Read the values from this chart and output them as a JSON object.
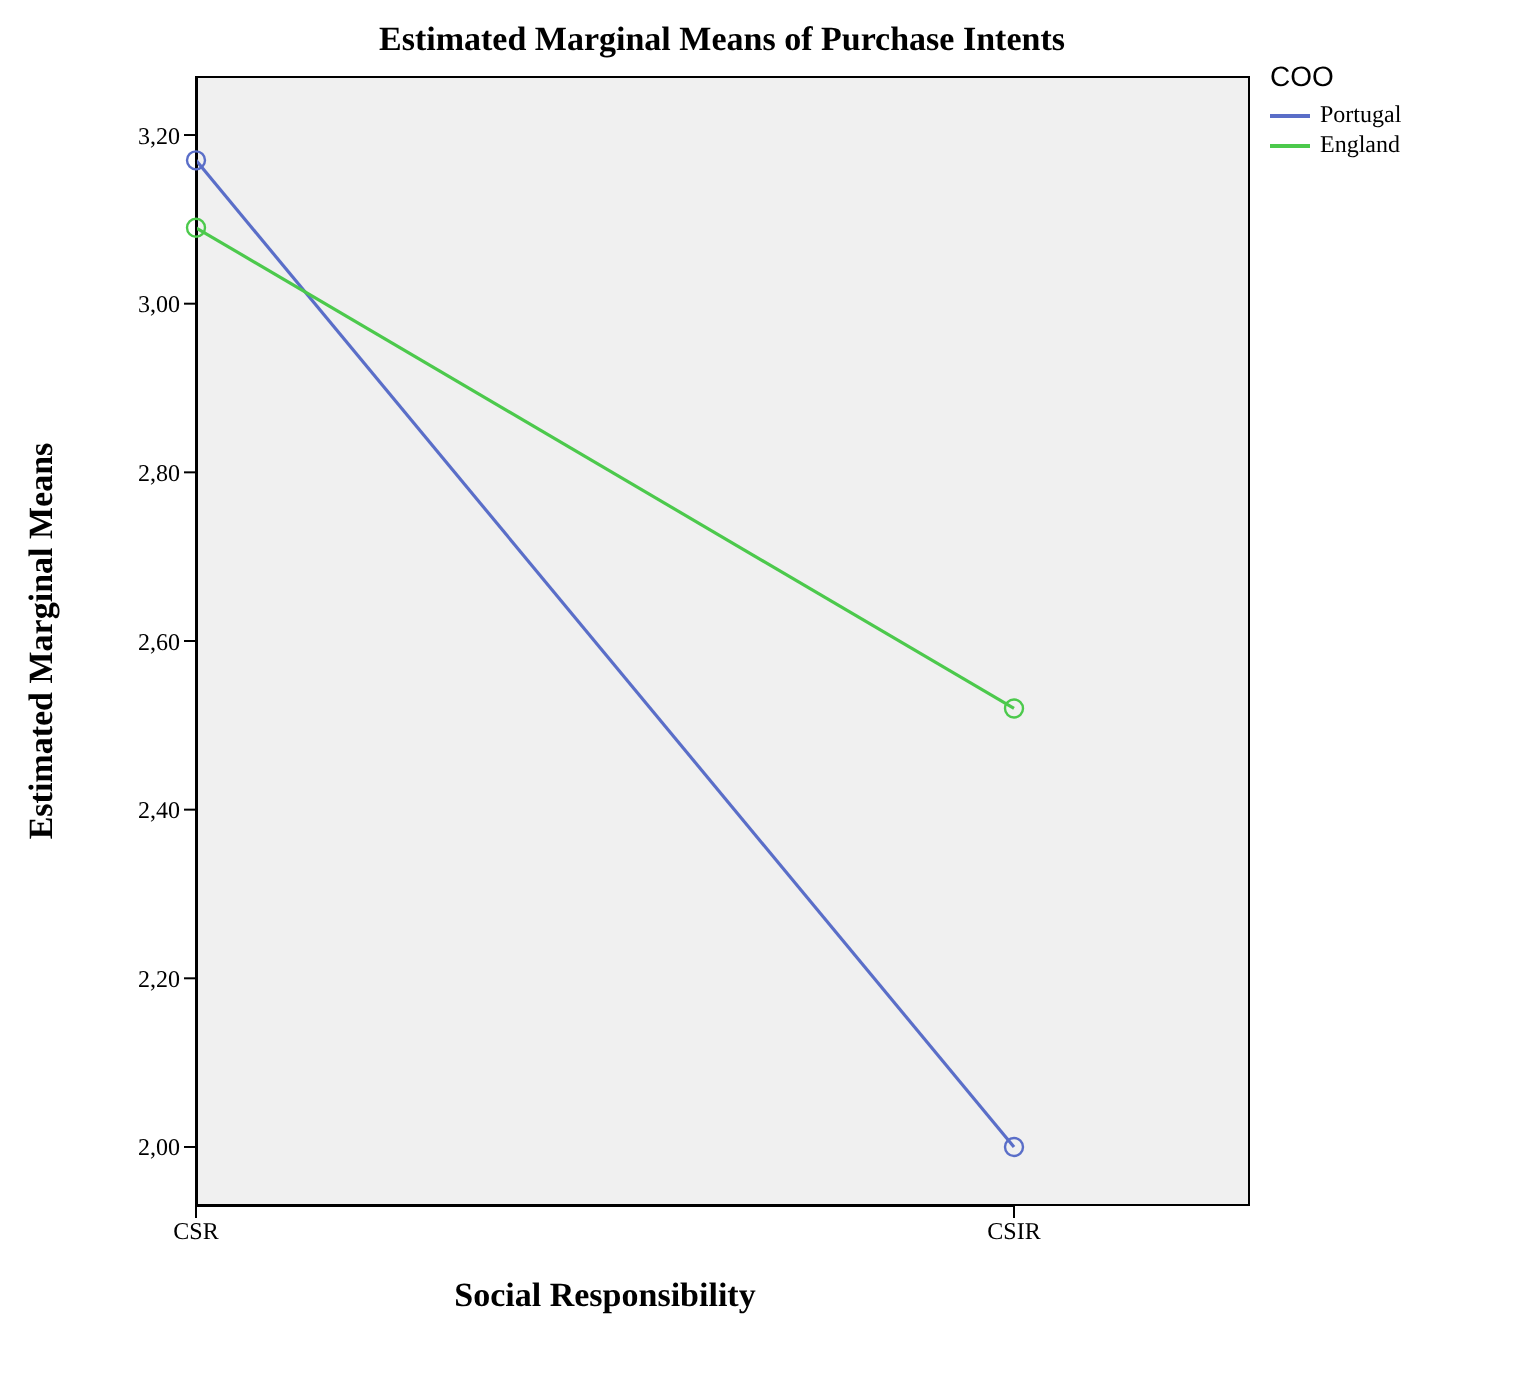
{
  "chart_data": {
    "type": "line",
    "title": "Estimated Marginal Means of Purchase Intents",
    "xlabel": "Social Responsibility",
    "ylabel": "Estimated Marginal Means",
    "legend_title": "COO",
    "categories": [
      "CSR",
      "CSIR"
    ],
    "series": [
      {
        "name": "Portugal",
        "color": "#5a6ec8",
        "values": [
          3.17,
          2.0
        ]
      },
      {
        "name": "England",
        "color": "#4cc94c",
        "values": [
          3.09,
          2.52
        ]
      }
    ],
    "ylim": [
      1.93,
      3.27
    ],
    "yticks": [
      {
        "value": 2.0,
        "label": "2,00"
      },
      {
        "value": 2.2,
        "label": "2,20"
      },
      {
        "value": 2.4,
        "label": "2,40"
      },
      {
        "value": 2.6,
        "label": "2,60"
      },
      {
        "value": 2.8,
        "label": "2,80"
      },
      {
        "value": 3.0,
        "label": "3,00"
      },
      {
        "value": 3.2,
        "label": "3,20"
      }
    ],
    "legend": "top right",
    "marker": "circle",
    "line_style": "solid"
  }
}
